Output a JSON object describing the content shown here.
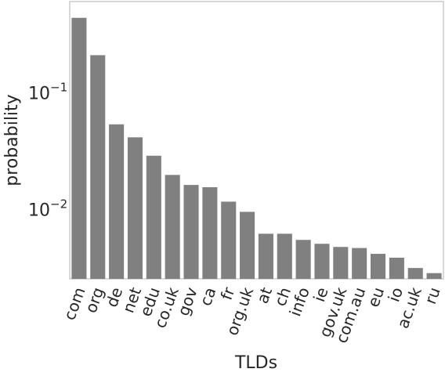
{
  "chart_data": {
    "type": "bar",
    "title": "",
    "xlabel": "TLDs",
    "ylabel": "probability",
    "yscale": "log",
    "ylim": [
      0.0025,
      0.6
    ],
    "grid": false,
    "bar_color": "#808080",
    "categories": [
      "com",
      "org",
      "de",
      "net",
      "edu",
      "co.uk",
      "gov",
      "ca",
      "fr",
      "org.uk",
      "at",
      "ch",
      "info",
      "ie",
      "gov.uk",
      "com.au",
      "eu",
      "io",
      "ac.uk",
      "ru"
    ],
    "values": [
      0.435,
      0.208,
      0.053,
      0.041,
      0.0285,
      0.0195,
      0.016,
      0.0153,
      0.0115,
      0.0094,
      0.0061,
      0.0061,
      0.0054,
      0.005,
      0.0047,
      0.0046,
      0.0041,
      0.0038,
      0.0031,
      0.0028
    ],
    "y_ticks": [
      {
        "value": 0.1,
        "base": "10",
        "exponent": "−1"
      },
      {
        "value": 0.01,
        "base": "10",
        "exponent": "−2"
      }
    ]
  }
}
